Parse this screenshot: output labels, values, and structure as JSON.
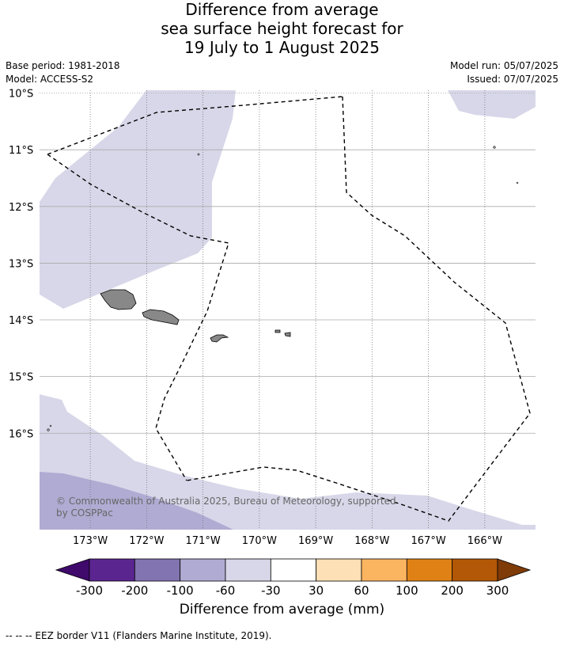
{
  "title": {
    "line1": "Difference from average",
    "line2": "sea surface height forecast for",
    "line3": "19 July to 1 August 2025"
  },
  "meta": {
    "base_period": "Base period: 1981-2018",
    "model": "Model: ACCESS-S2",
    "model_run": "Model run: 05/07/2025",
    "issued": "Issued: 07/07/2025"
  },
  "map": {
    "lon_range": [
      -173.9,
      -165.1
    ],
    "lat_range": [
      -17.7,
      -9.95
    ],
    "lat_ticks": [
      {
        "value": -10,
        "label": "10°S"
      },
      {
        "value": -11,
        "label": "11°S"
      },
      {
        "value": -12,
        "label": "12°S"
      },
      {
        "value": -13,
        "label": "13°S"
      },
      {
        "value": -14,
        "label": "14°S"
      },
      {
        "value": -15,
        "label": "15°S"
      },
      {
        "value": -16,
        "label": "16°S"
      }
    ],
    "lon_ticks": [
      {
        "value": -173,
        "label": "173°W"
      },
      {
        "value": -172,
        "label": "172°W"
      },
      {
        "value": -171,
        "label": "171°W"
      },
      {
        "value": -170,
        "label": "170°W"
      },
      {
        "value": -169,
        "label": "169°W"
      },
      {
        "value": -168,
        "label": "168°W"
      },
      {
        "value": -167,
        "label": "167°W"
      },
      {
        "value": -166,
        "label": "166°W"
      }
    ],
    "colors": {
      "light_lavender": "#d7d7e9",
      "medium_lavender": "#b0abd3",
      "land": "#888888",
      "grid": "#aaaaaa"
    },
    "eez_border_style": "dashed"
  },
  "copyright": "© Commonwealth of Australia 2025, Bureau of Meteorology, supported by COSPPac",
  "colorbar": {
    "segment_colors": [
      "#3f0a6b",
      "#5b2590",
      "#8274b0",
      "#b0abd3",
      "#d7d7e9",
      "#ffffff",
      "#fde0b6",
      "#fbb460",
      "#e08116",
      "#b35806",
      "#7f3b08"
    ],
    "tick_labels": [
      "-300",
      "-200",
      "-100",
      "-60",
      "-30",
      "30",
      "60",
      "100",
      "200",
      "300"
    ],
    "label": "Difference from average (mm)"
  },
  "footnote": "--  --  -- EEZ border V11 (Flanders Marine Institute, 2019)."
}
